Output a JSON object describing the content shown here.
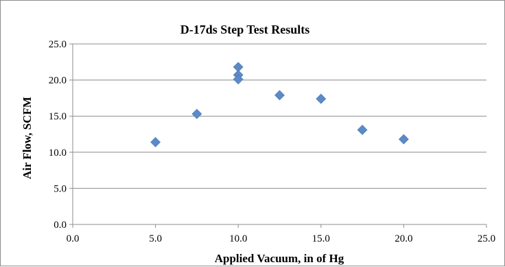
{
  "chart_data": {
    "type": "scatter",
    "title": "D-17ds Step Test Results",
    "xlabel": "Applied Vacuum, in of Hg",
    "ylabel": "Air Flow, SCFM",
    "xlim": [
      0,
      25
    ],
    "ylim": [
      0,
      25
    ],
    "x_ticks": [
      "0.0",
      "5.0",
      "10.0",
      "15.0",
      "20.0",
      "25.0"
    ],
    "y_ticks": [
      "0.0",
      "5.0",
      "10.0",
      "15.0",
      "20.0",
      "25.0"
    ],
    "grid": "horizontal",
    "legend": "none",
    "marker": "diamond",
    "marker_color": "#5b8ac6",
    "points": [
      {
        "x": 5.0,
        "y": 11.4
      },
      {
        "x": 7.5,
        "y": 15.3
      },
      {
        "x": 10.0,
        "y": 21.8
      },
      {
        "x": 10.0,
        "y": 20.7
      },
      {
        "x": 10.0,
        "y": 20.1
      },
      {
        "x": 12.5,
        "y": 17.9
      },
      {
        "x": 15.0,
        "y": 17.4
      },
      {
        "x": 17.5,
        "y": 13.1
      },
      {
        "x": 20.0,
        "y": 11.8
      }
    ]
  }
}
